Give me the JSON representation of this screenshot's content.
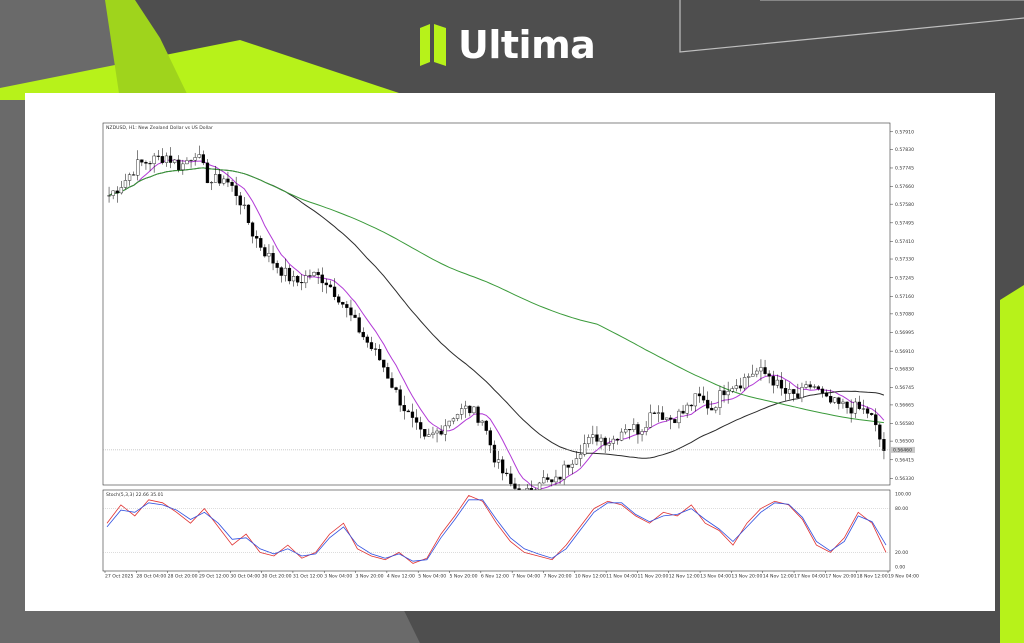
{
  "brand": {
    "name": "Ultima",
    "icon": "ultima-logo-icon",
    "accent": "#b7f21a",
    "background": "#555555"
  },
  "chart_data": [
    {
      "type": "candlestick",
      "title": "NZDUSD, H1:  New Zealand Dollar vs US Dollar",
      "y_ticks": [
        "0.57910",
        "0.57830",
        "0.57745",
        "0.57660",
        "0.57580",
        "0.57495",
        "0.57410",
        "0.57330",
        "0.57245",
        "0.57160",
        "0.57080",
        "0.56995",
        "0.56910",
        "0.56830",
        "0.56745",
        "0.56665",
        "0.56580",
        "0.56500",
        "0.56415",
        "0.56330"
      ],
      "ylim": [
        0.563,
        0.5795
      ],
      "current_price": "0.56460",
      "x_ticks": [
        "27 Oct 2025",
        "28 Oct 04:00",
        "28 Oct 20:00",
        "29 Oct 12:00",
        "30 Oct 04:00",
        "30 Oct 20:00",
        "31 Oct 12:00",
        "3 Nov 04:00",
        "3 Nov 20:00",
        "4 Nov 12:00",
        "5 Nov 04:00",
        "5 Nov 20:00",
        "6 Nov 12:00",
        "7 Nov 04:00",
        "7 Nov 20:00",
        "10 Nov 12:00",
        "11 Nov 04:00",
        "11 Nov 20:00",
        "12 Nov 12:00",
        "13 Nov 04:00",
        "13 Nov 20:00",
        "14 Nov 12:00",
        "17 Nov 04:00",
        "17 Nov 20:00",
        "18 Nov 12:00",
        "19 Nov 04:00"
      ],
      "moving_averages": [
        {
          "color": "#b23ad6",
          "period": "fast"
        },
        {
          "color": "#2b2b2b",
          "period": "medium"
        },
        {
          "color": "#3a9a3a",
          "period": "slow"
        }
      ],
      "close_path": [
        0.5762,
        0.5768,
        0.5776,
        0.5778,
        0.578,
        0.5775,
        0.5782,
        0.5768,
        0.577,
        0.5762,
        0.5745,
        0.5735,
        0.5728,
        0.5722,
        0.5726,
        0.5724,
        0.5716,
        0.5705,
        0.5695,
        0.5686,
        0.5672,
        0.566,
        0.565,
        0.5655,
        0.5662,
        0.5665,
        0.566,
        0.564,
        0.563,
        0.5625,
        0.5633,
        0.563,
        0.564,
        0.5648,
        0.5652,
        0.565,
        0.5657,
        0.5655,
        0.5665,
        0.566,
        0.5663,
        0.567,
        0.5665,
        0.5675,
        0.5677,
        0.5682,
        0.568,
        0.5672,
        0.567,
        0.5676,
        0.5668,
        0.5666,
        0.5665,
        0.5663,
        0.5646
      ]
    },
    {
      "type": "line",
      "title": "Stoch(5,3,3) 22.66 35.01",
      "y_ticks": [
        "100.00",
        "80.00",
        "20.00",
        "0.00"
      ],
      "ylim": [
        0,
        100
      ],
      "series": [
        {
          "color": "#e03030",
          "values": [
            60,
            85,
            70,
            92,
            88,
            75,
            60,
            80,
            55,
            30,
            45,
            20,
            15,
            30,
            12,
            20,
            45,
            60,
            25,
            15,
            10,
            20,
            5,
            12,
            45,
            70,
            98,
            90,
            60,
            35,
            20,
            15,
            10,
            30,
            55,
            80,
            90,
            85,
            70,
            60,
            75,
            70,
            85,
            60,
            50,
            30,
            60,
            80,
            90,
            85,
            65,
            30,
            20,
            40,
            75,
            60,
            20
          ]
        },
        {
          "color": "#3050e0",
          "values": [
            55,
            78,
            75,
            88,
            85,
            78,
            65,
            75,
            60,
            38,
            40,
            25,
            18,
            25,
            15,
            18,
            40,
            55,
            30,
            18,
            12,
            18,
            8,
            10,
            40,
            65,
            92,
            92,
            65,
            40,
            25,
            18,
            12,
            25,
            50,
            75,
            88,
            88,
            72,
            62,
            70,
            72,
            80,
            65,
            52,
            35,
            55,
            75,
            88,
            86,
            68,
            35,
            22,
            35,
            70,
            62,
            30
          ]
        }
      ]
    }
  ]
}
